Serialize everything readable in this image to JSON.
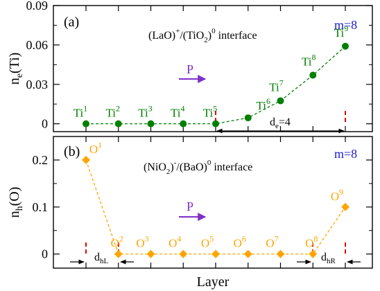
{
  "xlabel": "Layer",
  "chart_data": [
    {
      "type": "line",
      "panel_label": "(a)",
      "annotation": "(LaO)+/(TiO2)0 interface",
      "m_label": "m=8",
      "ylabel": "n_e(Ti)",
      "ylim": [
        -0.006,
        0.09
      ],
      "yticks": [
        "0",
        "0.03",
        "0.06",
        "0.09"
      ],
      "color": "#008000",
      "series": [
        {
          "x": [
            1,
            2,
            3,
            4,
            5,
            6,
            7,
            8,
            9
          ],
          "values": [
            0,
            0,
            0,
            0,
            0,
            0.0045,
            0.0175,
            0.037,
            0.059
          ],
          "point_labels": [
            "Ti",
            "Ti",
            "Ti",
            "Ti",
            "Ti",
            "Ti",
            "Ti",
            "Ti",
            "Ti"
          ],
          "point_sups": [
            "1",
            "2",
            "3",
            "4",
            "5",
            "6",
            "7",
            "8",
            "9"
          ]
        }
      ],
      "arrow_label": "P",
      "span_label": "d_e=4"
    },
    {
      "type": "line",
      "panel_label": "(b)",
      "annotation": "(NiO2)-/(BaO)0 interface",
      "m_label": "m=8",
      "ylabel": "n_h(O)",
      "ylim": [
        -0.03,
        0.25
      ],
      "yticks": [
        "0",
        "0.1",
        "0.2"
      ],
      "color": "#FFA500",
      "series": [
        {
          "x": [
            1,
            2,
            3,
            4,
            5,
            6,
            7,
            8,
            9
          ],
          "values": [
            0.2,
            0,
            0,
            0,
            0,
            0,
            0,
            0,
            0.1
          ],
          "point_labels": [
            "O",
            "O",
            "O",
            "O",
            "O",
            "O",
            "O",
            "O",
            "O"
          ],
          "point_sups": [
            "1",
            "2",
            "3",
            "4",
            "5",
            "6",
            "7",
            "8",
            "9"
          ]
        }
      ],
      "arrow_label": "P",
      "left_span_label": "d_hL",
      "right_span_label": "d_hR"
    }
  ]
}
